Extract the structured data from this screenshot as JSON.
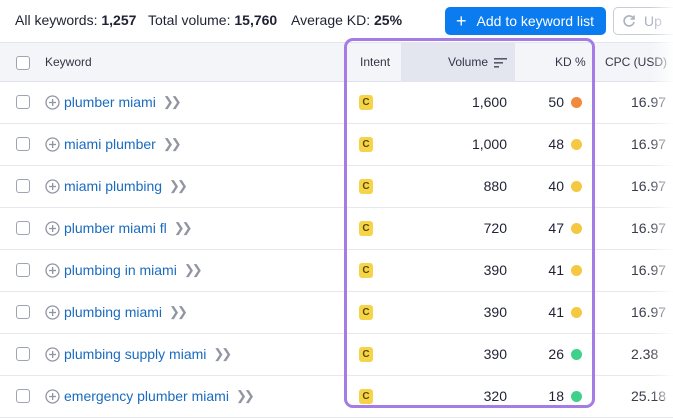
{
  "summary": {
    "all_keywords_label": "All keywords:",
    "all_keywords_value": "1,257",
    "total_volume_label": "Total volume:",
    "total_volume_value": "15,760",
    "avg_kd_label": "Average KD:",
    "avg_kd_value": "25%"
  },
  "toolbar": {
    "add_label": "Add to keyword list",
    "update_label": "Up"
  },
  "columns": {
    "keyword": "Keyword",
    "intent": "Intent",
    "volume": "Volume",
    "kd": "KD %",
    "cpc": "CPC (USD)"
  },
  "rows": [
    {
      "keyword": "plumber miami",
      "intent": "C",
      "volume": "1,600",
      "kd": "50",
      "kd_color": "#f08a3c",
      "cpc": "16.97"
    },
    {
      "keyword": "miami plumber",
      "intent": "C",
      "volume": "1,000",
      "kd": "48",
      "kd_color": "#f5c842",
      "cpc": "16.97"
    },
    {
      "keyword": "miami plumbing",
      "intent": "C",
      "volume": "880",
      "kd": "40",
      "kd_color": "#f5c842",
      "cpc": "16.97"
    },
    {
      "keyword": "plumber miami fl",
      "intent": "C",
      "volume": "720",
      "kd": "47",
      "kd_color": "#f5c842",
      "cpc": "16.97"
    },
    {
      "keyword": "plumbing in miami",
      "intent": "C",
      "volume": "390",
      "kd": "41",
      "kd_color": "#f5c842",
      "cpc": "16.97"
    },
    {
      "keyword": "plumbing miami",
      "intent": "C",
      "volume": "390",
      "kd": "41",
      "kd_color": "#f5c842",
      "cpc": "16.97"
    },
    {
      "keyword": "plumbing supply miami",
      "intent": "C",
      "volume": "390",
      "kd": "26",
      "kd_color": "#3fd08a",
      "cpc": "2.38"
    },
    {
      "keyword": "emergency plumber miami",
      "intent": "C",
      "volume": "320",
      "kd": "18",
      "kd_color": "#3fd08a",
      "cpc": "25.18"
    }
  ],
  "colors": {
    "accent": "#0a7cf0",
    "highlight": "#a57be6",
    "intent_badge": "#f5d44a"
  }
}
